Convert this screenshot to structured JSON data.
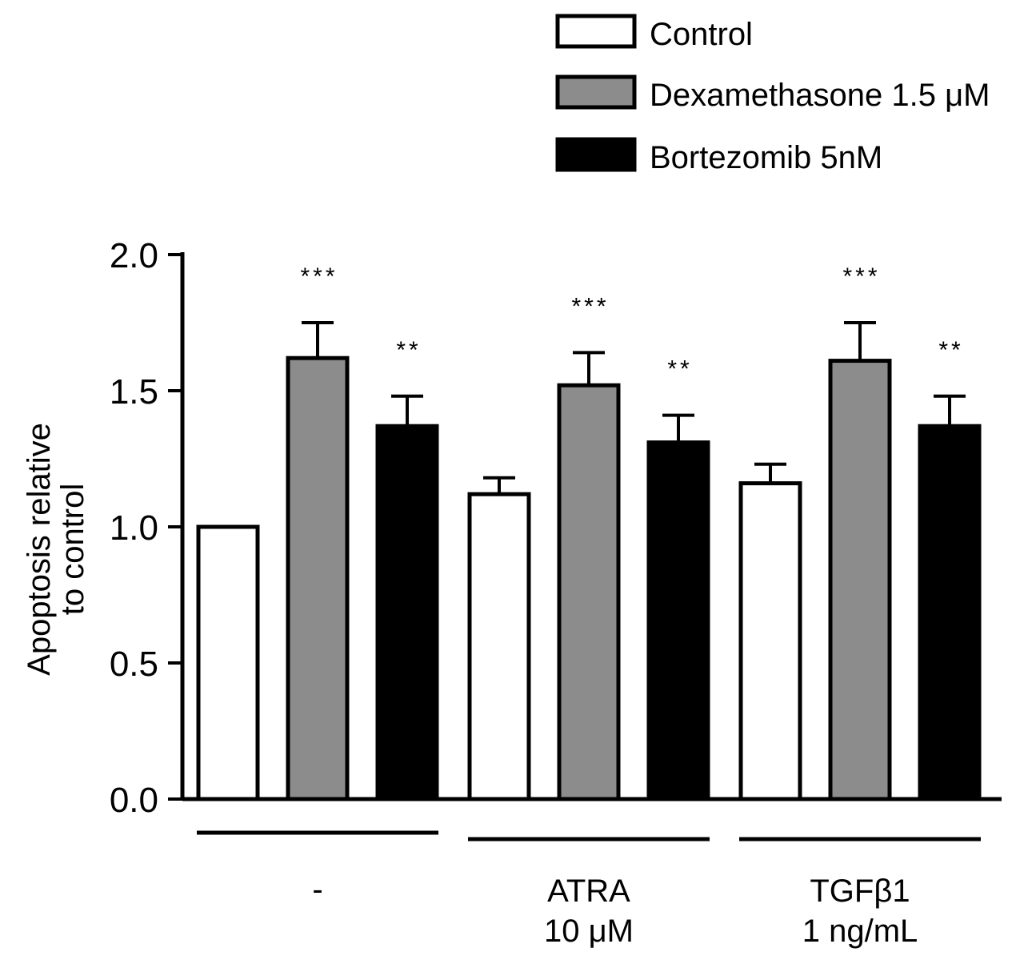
{
  "chart_data": {
    "type": "bar",
    "title": "",
    "ylabel": [
      "Apoptosis relative",
      "to control"
    ],
    "xlabel": "",
    "ylim": [
      0,
      2.0
    ],
    "yticks": [
      "0.0",
      "0.5",
      "1.0",
      "1.5",
      "2.0"
    ],
    "ytick_values": [
      0,
      0.5,
      1.0,
      1.5,
      2.0
    ],
    "groups": [
      {
        "label_lines": [
          "-"
        ]
      },
      {
        "label_lines": [
          "ATRA",
          "10 μM"
        ]
      },
      {
        "label_lines": [
          "TGFβ1",
          "1 ng/mL"
        ]
      }
    ],
    "legend_position": "top-right",
    "series": [
      {
        "name": "Control",
        "color": "#ffffff",
        "values": [
          1.0,
          1.12,
          1.16
        ],
        "errors": [
          0.0,
          0.06,
          0.07
        ],
        "significance": [
          "",
          "",
          ""
        ]
      },
      {
        "name": "Dexamethasone 1.5 μM",
        "color": "#8c8c8c",
        "values": [
          1.62,
          1.52,
          1.61
        ],
        "errors": [
          0.13,
          0.12,
          0.14
        ],
        "significance": [
          "***",
          "***",
          "***"
        ]
      },
      {
        "name": "Bortezomib 5nM",
        "color": "#000000",
        "values": [
          1.37,
          1.31,
          1.37
        ],
        "errors": [
          0.11,
          0.1,
          0.11
        ],
        "significance": [
          "**",
          "**",
          "**"
        ]
      }
    ]
  }
}
